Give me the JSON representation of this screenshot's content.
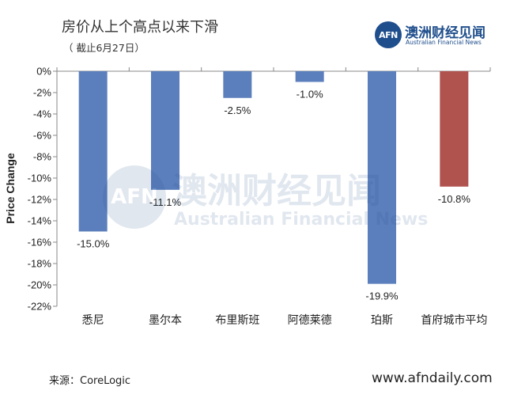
{
  "header": {
    "title": "房价从上个高点以来下滑",
    "subtitle": "（ 截止6月27日）"
  },
  "logo": {
    "mark": "AFN",
    "name_cn": "澳洲财经见闻",
    "name_en": "Australian Financial News"
  },
  "watermark": {
    "mark": "AFN",
    "name_cn": "澳洲财经见闻",
    "name_en": "Australian Financial News"
  },
  "footer": {
    "source": "来源：CoreLogic",
    "website": "www.afndaily.com"
  },
  "colors": {
    "city_bar": "#5b7fbc",
    "average_bar": "#b0534f",
    "brand": "#1f4e8c"
  },
  "chart_data": {
    "type": "bar",
    "title": "房价从上个高点以来下滑",
    "subtitle": "（ 截止6月27日）",
    "xlabel": "",
    "ylabel": "Price Change",
    "ylim": [
      -22,
      0
    ],
    "yticks": [
      0,
      -2,
      -4,
      -6,
      -8,
      -10,
      -12,
      -14,
      -16,
      -18,
      -20,
      -22
    ],
    "ytick_labels": [
      "0%",
      "-2%",
      "-4%",
      "-6%",
      "-8%",
      "-10%",
      "-12%",
      "-14%",
      "-16%",
      "-18%",
      "-20%",
      "-22%"
    ],
    "categories": [
      "悉尼",
      "墨尔本",
      "布里斯班",
      "阿德莱德",
      "珀斯",
      "首府城市平均"
    ],
    "values": [
      -15.0,
      -11.1,
      -2.5,
      -1.0,
      -19.9,
      -10.8
    ],
    "value_labels": [
      "-15.0%",
      "-11.1%",
      "-2.5%",
      "-1.0%",
      "-19.9%",
      "-10.8%"
    ],
    "bar_colors": [
      "#5b7fbc",
      "#5b7fbc",
      "#5b7fbc",
      "#5b7fbc",
      "#5b7fbc",
      "#b0534f"
    ],
    "grid": false,
    "legend": "none"
  }
}
